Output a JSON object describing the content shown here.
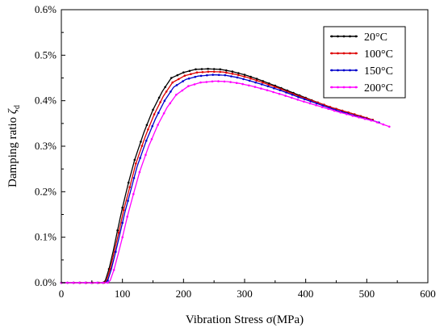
{
  "chart_data": {
    "type": "line",
    "xlabel": "Vibration Stress σ(MPa)",
    "ylabel_main": "Damping ratio ",
    "ylabel_symbol": "ζ",
    "ylabel_sub": "d",
    "xlim": [
      0,
      600
    ],
    "ylim": [
      0,
      0.006
    ],
    "x_ticks": [
      0,
      100,
      200,
      300,
      400,
      500,
      600
    ],
    "x_tick_labels": [
      "0",
      "100",
      "200",
      "300",
      "400",
      "500",
      "600"
    ],
    "y_ticks": [
      0,
      0.001,
      0.002,
      0.003,
      0.004,
      0.005,
      0.006
    ],
    "y_tick_labels": [
      "0.0%",
      "0.1%",
      "0.2%",
      "0.3%",
      "0.4%",
      "0.5%",
      "0.6%"
    ],
    "grid": false,
    "legend_position": "top-right",
    "series": [
      {
        "name": "20°C",
        "color": "#000000",
        "points": [
          [
            0,
            0
          ],
          [
            60,
            0
          ],
          [
            68,
            0
          ],
          [
            72,
            5e-05
          ],
          [
            78,
            0.0003
          ],
          [
            85,
            0.0007
          ],
          [
            92,
            0.00115
          ],
          [
            100,
            0.00165
          ],
          [
            110,
            0.0022
          ],
          [
            120,
            0.0027
          ],
          [
            135,
            0.0033
          ],
          [
            150,
            0.0038
          ],
          [
            165,
            0.0042
          ],
          [
            180,
            0.0045
          ],
          [
            200,
            0.00462
          ],
          [
            220,
            0.00469
          ],
          [
            240,
            0.0047
          ],
          [
            260,
            0.00469
          ],
          [
            280,
            0.00464
          ],
          [
            300,
            0.00457
          ],
          [
            320,
            0.00448
          ],
          [
            350,
            0.00433
          ],
          [
            380,
            0.00417
          ],
          [
            410,
            0.00401
          ],
          [
            440,
            0.00386
          ],
          [
            470,
            0.00374
          ],
          [
            500,
            0.00362
          ],
          [
            505,
            0.0036
          ]
        ]
      },
      {
        "name": "100°C",
        "color": "#dd0000",
        "points": [
          [
            0,
            0
          ],
          [
            62,
            0
          ],
          [
            70,
            0
          ],
          [
            74,
            5e-05
          ],
          [
            80,
            0.0003
          ],
          [
            87,
            0.0007
          ],
          [
            94,
            0.0011
          ],
          [
            102,
            0.0016
          ],
          [
            112,
            0.0021
          ],
          [
            122,
            0.00262
          ],
          [
            137,
            0.0032
          ],
          [
            152,
            0.0037
          ],
          [
            167,
            0.0041
          ],
          [
            182,
            0.0044
          ],
          [
            202,
            0.00455
          ],
          [
            222,
            0.00462
          ],
          [
            245,
            0.00464
          ],
          [
            265,
            0.00463
          ],
          [
            285,
            0.00458
          ],
          [
            305,
            0.00451
          ],
          [
            325,
            0.00442
          ],
          [
            355,
            0.00428
          ],
          [
            385,
            0.00412
          ],
          [
            415,
            0.00398
          ],
          [
            445,
            0.00384
          ],
          [
            475,
            0.00372
          ],
          [
            505,
            0.0036
          ],
          [
            510,
            0.00358
          ]
        ]
      },
      {
        "name": "150°C",
        "color": "#0000cc",
        "points": [
          [
            0,
            0
          ],
          [
            64,
            0
          ],
          [
            72,
            0
          ],
          [
            76,
            5e-05
          ],
          [
            82,
            0.0003
          ],
          [
            89,
            0.00068
          ],
          [
            96,
            0.00108
          ],
          [
            104,
            0.00155
          ],
          [
            114,
            0.00205
          ],
          [
            124,
            0.00255
          ],
          [
            139,
            0.00312
          ],
          [
            154,
            0.0036
          ],
          [
            169,
            0.004
          ],
          [
            184,
            0.0043
          ],
          [
            204,
            0.00447
          ],
          [
            224,
            0.00454
          ],
          [
            248,
            0.00457
          ],
          [
            268,
            0.00456
          ],
          [
            288,
            0.00451
          ],
          [
            308,
            0.00444
          ],
          [
            328,
            0.00436
          ],
          [
            358,
            0.00423
          ],
          [
            388,
            0.00408
          ],
          [
            418,
            0.00394
          ],
          [
            448,
            0.0038
          ],
          [
            478,
            0.00368
          ],
          [
            508,
            0.00357
          ],
          [
            520,
            0.00352
          ]
        ]
      },
      {
        "name": "200°C",
        "color": "#ff00ff",
        "points": [
          [
            0,
            0
          ],
          [
            68,
            0
          ],
          [
            76,
            0
          ],
          [
            80,
            5e-05
          ],
          [
            86,
            0.00028
          ],
          [
            93,
            0.00063
          ],
          [
            100,
            0.001
          ],
          [
            108,
            0.00145
          ],
          [
            118,
            0.00195
          ],
          [
            128,
            0.00243
          ],
          [
            143,
            0.003
          ],
          [
            158,
            0.00347
          ],
          [
            173,
            0.00385
          ],
          [
            188,
            0.00413
          ],
          [
            208,
            0.00432
          ],
          [
            228,
            0.0044
          ],
          [
            252,
            0.00443
          ],
          [
            272,
            0.00442
          ],
          [
            292,
            0.00438
          ],
          [
            312,
            0.00432
          ],
          [
            332,
            0.00425
          ],
          [
            362,
            0.00413
          ],
          [
            392,
            0.004
          ],
          [
            422,
            0.00388
          ],
          [
            452,
            0.00376
          ],
          [
            482,
            0.00365
          ],
          [
            512,
            0.00355
          ],
          [
            537,
            0.00343
          ]
        ]
      }
    ]
  }
}
